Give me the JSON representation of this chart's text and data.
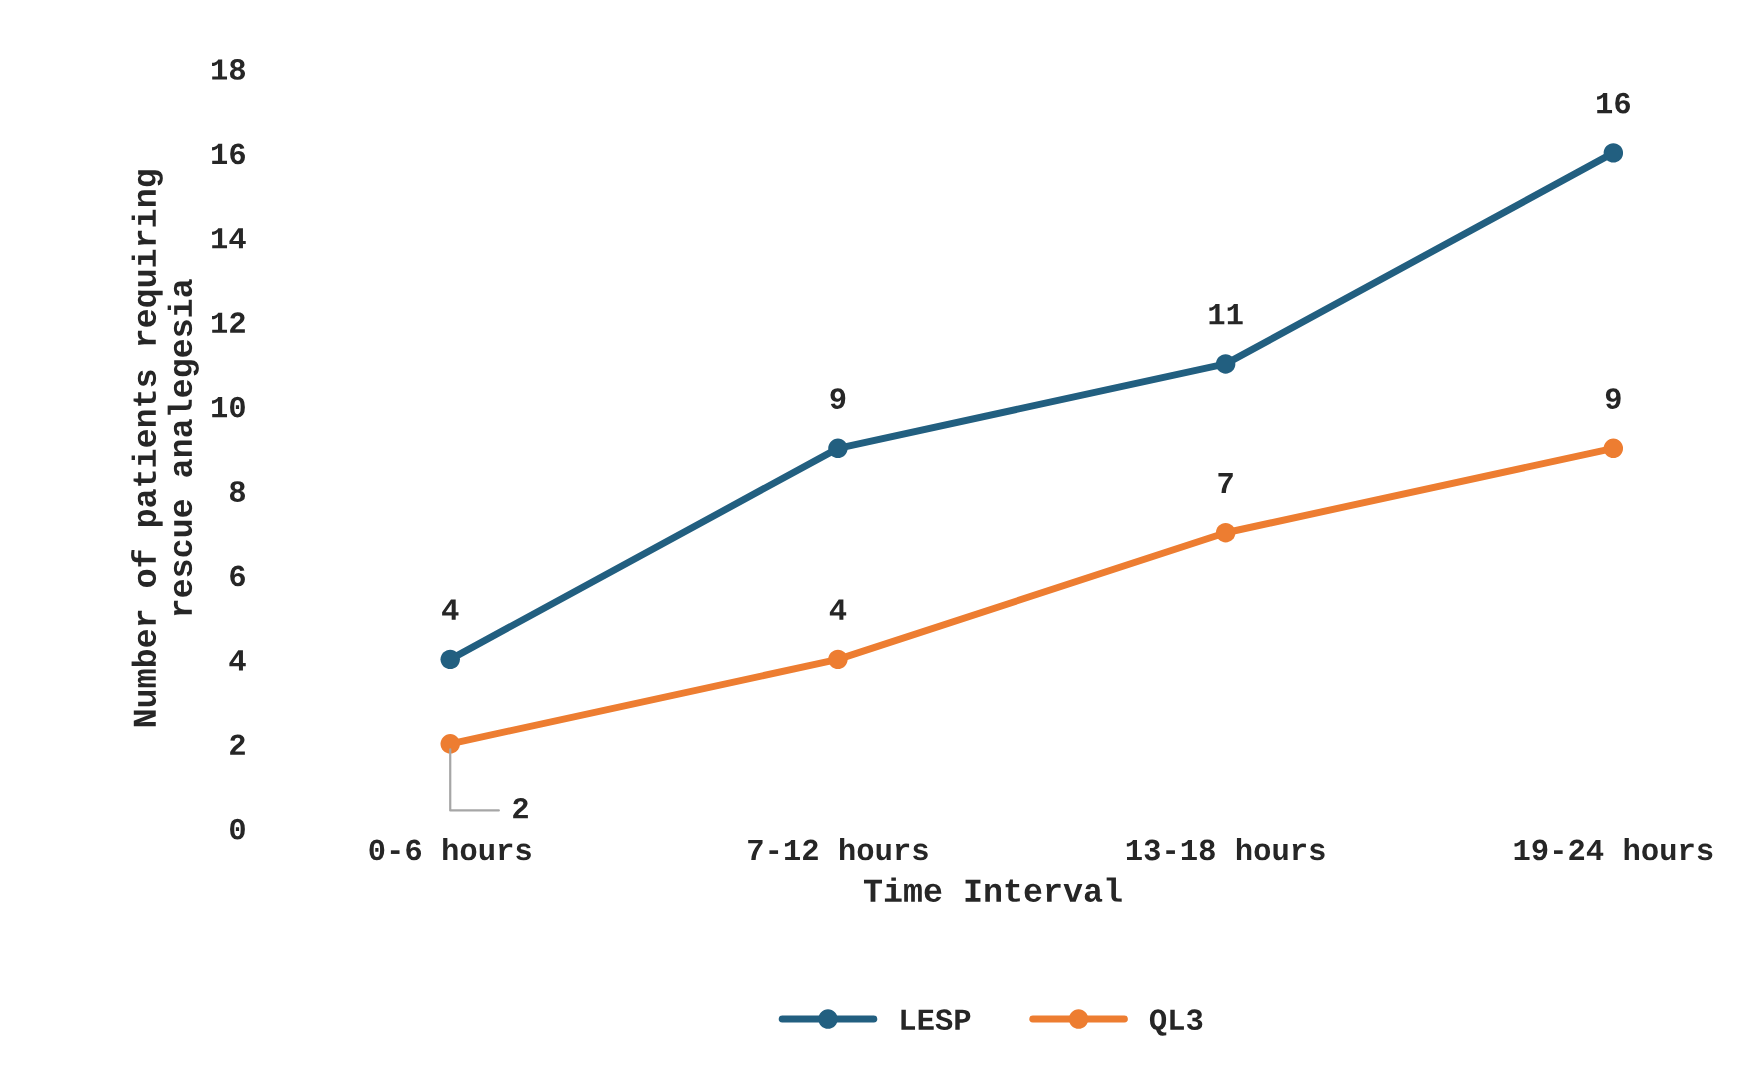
{
  "chart_data": {
    "type": "line",
    "xlabel": "Time Interval",
    "ylabel": "Number of patients requiring\nrescue analegesia",
    "categories": [
      "0-6 hours",
      "7-12 hours",
      "13-18 hours",
      "19-24 hours"
    ],
    "series": [
      {
        "name": "LESP",
        "color": "#225f80",
        "values": [
          4,
          9,
          11,
          16
        ]
      },
      {
        "name": "QL3",
        "color": "#ed7d31",
        "values": [
          2,
          4,
          7,
          9
        ]
      }
    ],
    "ylim": [
      0,
      18
    ],
    "yticks": [
      0,
      2,
      4,
      6,
      8,
      10,
      12,
      14,
      16,
      18
    ],
    "data_labels": true,
    "legend": "bottom",
    "grid": false,
    "marker": "circle",
    "line_style": "solid"
  }
}
